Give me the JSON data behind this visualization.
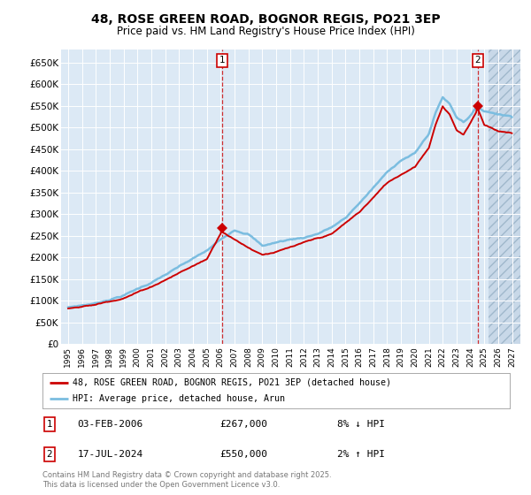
{
  "title": "48, ROSE GREEN ROAD, BOGNOR REGIS, PO21 3EP",
  "subtitle": "Price paid vs. HM Land Registry's House Price Index (HPI)",
  "background_color": "#dce9f5",
  "outer_bg_color": "#ffffff",
  "hpi_color": "#7bbde0",
  "price_color": "#cc0000",
  "ylim": [
    0,
    680000
  ],
  "yticks": [
    0,
    50000,
    100000,
    150000,
    200000,
    250000,
    300000,
    350000,
    400000,
    450000,
    500000,
    550000,
    600000,
    650000
  ],
  "purchase1_date": 2006.09,
  "purchase1_price": 267000,
  "purchase2_date": 2024.54,
  "purchase2_price": 550000,
  "legend_line1": "48, ROSE GREEN ROAD, BOGNOR REGIS, PO21 3EP (detached house)",
  "legend_line2": "HPI: Average price, detached house, Arun",
  "annotation1_date": "03-FEB-2006",
  "annotation1_price": "£267,000",
  "annotation1_hpi": "8% ↓ HPI",
  "annotation2_date": "17-JUL-2024",
  "annotation2_price": "£550,000",
  "annotation2_hpi": "2% ↑ HPI",
  "footer": "Contains HM Land Registry data © Crown copyright and database right 2025.\nThis data is licensed under the Open Government Licence v3.0.",
  "hpi_interp_x": [
    1995,
    1997,
    1999,
    2001,
    2003,
    2005,
    2006,
    2007,
    2008,
    2009,
    2010,
    2011,
    2012,
    2013,
    2014,
    2015,
    2016,
    2017,
    2018,
    2019,
    2020,
    2021,
    2021.5,
    2022,
    2022.5,
    2023,
    2023.5,
    2024,
    2024.5,
    2025,
    2026,
    2027
  ],
  "hpi_interp_y": [
    85000,
    95000,
    115000,
    145000,
    180000,
    215000,
    240000,
    265000,
    258000,
    230000,
    238000,
    245000,
    250000,
    260000,
    275000,
    295000,
    330000,
    365000,
    400000,
    430000,
    445000,
    490000,
    540000,
    575000,
    560000,
    530000,
    520000,
    535000,
    555000,
    545000,
    540000,
    535000
  ],
  "price_interp_x": [
    1995,
    1997,
    1999,
    2001,
    2003,
    2005,
    2006.09,
    2007,
    2008,
    2009,
    2010,
    2012,
    2014,
    2016,
    2018,
    2020,
    2021,
    2021.5,
    2022,
    2022.5,
    2023,
    2023.5,
    2024.54,
    2025,
    2026,
    2027
  ],
  "price_interp_y": [
    82000,
    90000,
    108000,
    135000,
    168000,
    200000,
    267000,
    248000,
    230000,
    215000,
    222000,
    240000,
    258000,
    308000,
    375000,
    415000,
    460000,
    515000,
    555000,
    535000,
    500000,
    490000,
    550000,
    515000,
    500000,
    495000
  ]
}
